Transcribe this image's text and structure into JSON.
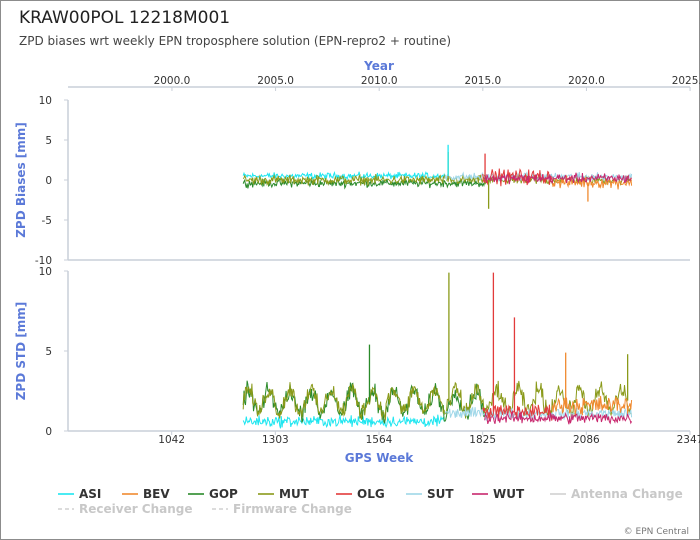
{
  "title": "KRAW00POL 12218M001",
  "subtitle": "ZPD biases wrt weekly EPN troposphere solution (EPN-repro2 + routine)",
  "credit": "© EPN Central",
  "chart_data": [
    {
      "type": "line",
      "panel": "top",
      "ylabel": "ZPD Biases [mm]",
      "xlabel_top": "Year",
      "ylim": [
        -10,
        10
      ],
      "yticks": [
        -10,
        -5,
        0,
        5,
        10
      ],
      "ytick_labels": [
        "-10",
        "-5",
        "0",
        "5",
        "10"
      ],
      "x_top_ticks": [
        2000.0,
        2005.0,
        2010.0,
        2015.0,
        2020.0,
        2025.0
      ],
      "x_top_tick_labels": [
        "2000.0",
        "2005.0",
        "2010.0",
        "2015.0",
        "2020.0",
        "2025.0"
      ],
      "series": [
        {
          "name": "ASI",
          "color": "#1ee6f0",
          "x_range": [
            1222,
            1730
          ],
          "mean": 0.5,
          "noise": 0.35
        },
        {
          "name": "GOP",
          "color": "#2a8a2a",
          "x_range": [
            1222,
            1830
          ],
          "mean": -0.4,
          "noise": 0.4
        },
        {
          "name": "MUT",
          "color": "#8a9a1a",
          "x_range": [
            1222,
            2200
          ],
          "mean": 0.0,
          "noise": 0.5
        },
        {
          "name": "SUT",
          "color": "#9fd7e8",
          "x_range": [
            1730,
            2200
          ],
          "mean": 0.4,
          "noise": 0.4
        },
        {
          "name": "OLG",
          "color": "#e23b3b",
          "x_range": [
            1825,
            2000
          ],
          "mean": 0.4,
          "noise": 0.8
        },
        {
          "name": "BEV",
          "color": "#f08a30",
          "x_range": [
            2000,
            2200
          ],
          "mean": -0.3,
          "noise": 0.6
        },
        {
          "name": "WUT",
          "color": "#c8286e",
          "x_range": [
            1830,
            2200
          ],
          "mean": 0.2,
          "noise": 0.5
        }
      ],
      "spikes": [
        {
          "series": "MUT",
          "x": 1738,
          "y": 3.5
        },
        {
          "series": "ASI",
          "x": 1738,
          "y": 4.4
        },
        {
          "series": "MUT",
          "x": 1840,
          "y": -3.6
        },
        {
          "series": "OLG",
          "x": 1831,
          "y": 3.3
        },
        {
          "series": "BEV",
          "x": 2090,
          "y": -2.7
        }
      ]
    },
    {
      "type": "line",
      "panel": "bottom",
      "ylabel": "ZPD STD [mm]",
      "xlabel": "GPS Week",
      "ylim": [
        0,
        10
      ],
      "yticks": [
        0,
        5,
        10
      ],
      "ytick_labels": [
        "0",
        "5",
        "10"
      ],
      "xlim": [
        781,
        2347
      ],
      "xticks": [
        1042,
        1303,
        1564,
        1825,
        2086,
        2347
      ],
      "xtick_labels": [
        "1042",
        "1303",
        "1564",
        "1825",
        "2086",
        "2347"
      ],
      "series": [
        {
          "name": "ASI",
          "color": "#1ee6f0",
          "x_range": [
            1222,
            1730
          ],
          "mean": 0.6,
          "noise": 0.3
        },
        {
          "name": "GOP",
          "color": "#2a8a2a",
          "x_range": [
            1222,
            1830
          ],
          "mean": 1.8,
          "noise": 0.5
        },
        {
          "name": "MUT",
          "color": "#8a9a1a",
          "x_range": [
            1222,
            2200
          ],
          "mean": 1.9,
          "noise": 0.5
        },
        {
          "name": "SUT",
          "color": "#9fd7e8",
          "x_range": [
            1730,
            2200
          ],
          "mean": 1.1,
          "noise": 0.3
        },
        {
          "name": "OLG",
          "color": "#e23b3b",
          "x_range": [
            1825,
            2000
          ],
          "mean": 1.2,
          "noise": 0.4
        },
        {
          "name": "BEV",
          "color": "#f08a30",
          "x_range": [
            2000,
            2200
          ],
          "mean": 1.6,
          "noise": 0.5
        },
        {
          "name": "WUT",
          "color": "#c8286e",
          "x_range": [
            1830,
            2200
          ],
          "mean": 0.8,
          "noise": 0.3
        }
      ],
      "spikes": [
        {
          "series": "MUT",
          "x": 1740,
          "y": 9.9
        },
        {
          "series": "GOP",
          "x": 1540,
          "y": 5.4
        },
        {
          "series": "OLG",
          "x": 1852,
          "y": 9.9
        },
        {
          "series": "OLG",
          "x": 1905,
          "y": 7.1
        },
        {
          "series": "BEV",
          "x": 2034,
          "y": 4.9
        },
        {
          "series": "MUT",
          "x": 2190,
          "y": 4.8
        }
      ]
    }
  ],
  "legend": [
    {
      "label": "ASI",
      "color": "#1ee6f0",
      "style": "solid",
      "muted": false
    },
    {
      "label": "BEV",
      "color": "#f08a30",
      "style": "solid",
      "muted": false
    },
    {
      "label": "GOP",
      "color": "#2a8a2a",
      "style": "solid",
      "muted": false
    },
    {
      "label": "MUT",
      "color": "#8a9a1a",
      "style": "solid",
      "muted": false
    },
    {
      "label": "OLG",
      "color": "#e23b3b",
      "style": "solid",
      "muted": false
    },
    {
      "label": "SUT",
      "color": "#9fd7e8",
      "style": "solid",
      "muted": false
    },
    {
      "label": "WUT",
      "color": "#c8286e",
      "style": "solid",
      "muted": false
    },
    {
      "label": "Antenna Change",
      "color": "#d0d0d0",
      "style": "solid",
      "muted": true
    },
    {
      "label": "Receiver Change",
      "color": "#d0d0d0",
      "style": "dashed",
      "muted": true
    },
    {
      "label": "Firmware Change",
      "color": "#d0d0d0",
      "style": "dashed",
      "muted": true
    }
  ]
}
